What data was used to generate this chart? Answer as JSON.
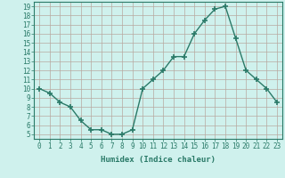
{
  "x": [
    0,
    1,
    2,
    3,
    4,
    5,
    6,
    7,
    8,
    9,
    10,
    11,
    12,
    13,
    14,
    15,
    16,
    17,
    18,
    19,
    20,
    21,
    22,
    23
  ],
  "y": [
    10,
    9.5,
    8.5,
    8.0,
    6.5,
    5.5,
    5.5,
    5.0,
    5.0,
    5.5,
    10,
    11,
    12,
    13.5,
    13.5,
    16,
    17.5,
    18.7,
    19.0,
    15.5,
    12,
    11,
    10,
    8.5
  ],
  "line_color": "#2a7a68",
  "marker_color": "#2a7a68",
  "bg_color": "#cff1ed",
  "grid_color": "#b8a8a0",
  "xlabel": "Humidex (Indice chaleur)",
  "xlim": [
    -0.5,
    23.5
  ],
  "ylim": [
    4.5,
    19.5
  ],
  "xticks": [
    0,
    1,
    2,
    3,
    4,
    5,
    6,
    7,
    8,
    9,
    10,
    11,
    12,
    13,
    14,
    15,
    16,
    17,
    18,
    19,
    20,
    21,
    22,
    23
  ],
  "yticks": [
    5,
    6,
    7,
    8,
    9,
    10,
    11,
    12,
    13,
    14,
    15,
    16,
    17,
    18,
    19
  ],
  "tick_fontsize": 5.5,
  "xlabel_fontsize": 6.5
}
